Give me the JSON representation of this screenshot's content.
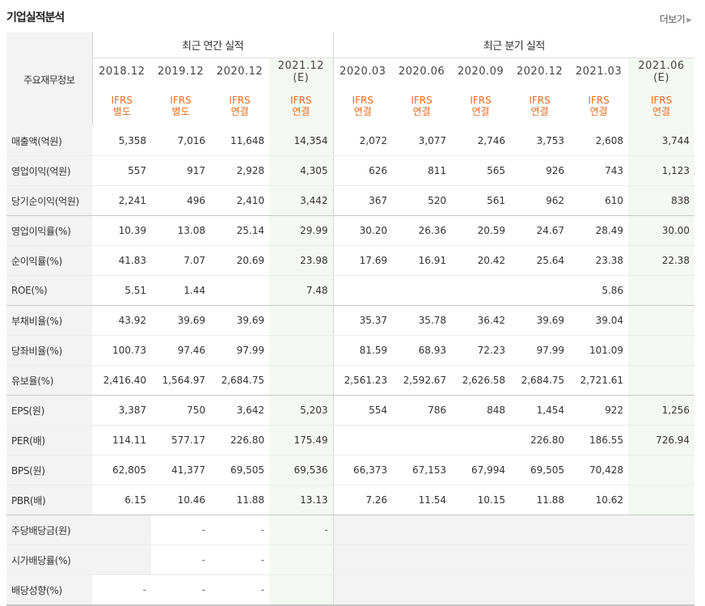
{
  "header": {
    "title": "기업실적분석",
    "more_label": "더보기"
  },
  "table": {
    "row_header": "주요재무정보",
    "annual_group": "최근 연간 실적",
    "quarter_group": "최근 분기 실적",
    "periods": [
      {
        "label": "2018.12",
        "type_top": "IFRS",
        "type_bottom": "별도"
      },
      {
        "label": "2019.12",
        "type_top": "IFRS",
        "type_bottom": "별도"
      },
      {
        "label": "2020.12",
        "type_top": "IFRS",
        "type_bottom": "연결"
      },
      {
        "label": "2021.12",
        "sub": "(E)",
        "type_top": "IFRS",
        "type_bottom": "연결"
      },
      {
        "label": "2020.03",
        "type_top": "IFRS",
        "type_bottom": "연결"
      },
      {
        "label": "2020.06",
        "type_top": "IFRS",
        "type_bottom": "연결"
      },
      {
        "label": "2020.09",
        "type_top": "IFRS",
        "type_bottom": "연결"
      },
      {
        "label": "2020.12",
        "type_top": "IFRS",
        "type_bottom": "연결"
      },
      {
        "label": "2021.03",
        "type_top": "IFRS",
        "type_bottom": "연결"
      },
      {
        "label": "2021.06",
        "sub": "(E)",
        "type_top": "IFRS",
        "type_bottom": "연결"
      }
    ],
    "rows": [
      {
        "label": "매출액(억원)",
        "values": [
          "5,358",
          "7,016",
          "11,648",
          "14,354",
          "2,072",
          "3,077",
          "2,746",
          "3,753",
          "2,608",
          "3,744"
        ]
      },
      {
        "label": "영업이익(억원)",
        "values": [
          "557",
          "917",
          "2,928",
          "4,305",
          "626",
          "811",
          "565",
          "926",
          "743",
          "1,123"
        ]
      },
      {
        "label": "당기순이익(억원)",
        "values": [
          "2,241",
          "496",
          "2,410",
          "3,442",
          "367",
          "520",
          "561",
          "962",
          "610",
          "838"
        ]
      },
      {
        "label": "영업이익률(%)",
        "values": [
          "10.39",
          "13.08",
          "25.14",
          "29.99",
          "30.20",
          "26.36",
          "20.59",
          "24.67",
          "28.49",
          "30.00"
        ]
      },
      {
        "label": "순이익률(%)",
        "values": [
          "41.83",
          "7.07",
          "20.69",
          "23.98",
          "17.69",
          "16.91",
          "20.42",
          "25.64",
          "23.38",
          "22.38"
        ]
      },
      {
        "label": "ROE(%)",
        "values": [
          "5.51",
          "1.44",
          "",
          "7.48",
          "",
          "",
          "",
          "",
          "5.86",
          ""
        ]
      },
      {
        "label": "부채비율(%)",
        "values": [
          "43.92",
          "39.69",
          "39.69",
          "",
          "35.37",
          "35.78",
          "36.42",
          "39.69",
          "39.04",
          ""
        ]
      },
      {
        "label": "당좌비율(%)",
        "values": [
          "100.73",
          "97.46",
          "97.99",
          "",
          "81.59",
          "68.93",
          "72.23",
          "97.99",
          "101.09",
          ""
        ]
      },
      {
        "label": "유보율(%)",
        "values": [
          "2,416.40",
          "1,564.97",
          "2,684.75",
          "",
          "2,561.23",
          "2,592.67",
          "2,626.58",
          "2,684.75",
          "2,721.61",
          ""
        ]
      },
      {
        "label": "EPS(원)",
        "values": [
          "3,387",
          "750",
          "3,642",
          "5,203",
          "554",
          "786",
          "848",
          "1,454",
          "922",
          "1,256"
        ]
      },
      {
        "label": "PER(배)",
        "values": [
          "114.11",
          "577.17",
          "226.80",
          "175.49",
          "",
          "",
          "",
          "226.80",
          "186.55",
          "726.94"
        ]
      },
      {
        "label": "BPS(원)",
        "values": [
          "62,805",
          "41,377",
          "69,505",
          "69,536",
          "66,373",
          "67,153",
          "67,994",
          "69,505",
          "70,428",
          ""
        ]
      },
      {
        "label": "PBR(배)",
        "values": [
          "6.15",
          "10.46",
          "11.88",
          "13.13",
          "7.26",
          "11.54",
          "10.15",
          "11.88",
          "10.62",
          ""
        ]
      },
      {
        "label": "주당배당금(원)",
        "values": [
          "",
          "-",
          "-",
          "-",
          "",
          "",
          "",
          "",
          "",
          ""
        ]
      },
      {
        "label": "시가배당률(%)",
        "values": [
          "",
          "-",
          "-",
          "",
          "",
          "",
          "",
          "",
          "",
          ""
        ]
      },
      {
        "label": "배당성향(%)",
        "values": [
          "-",
          "-",
          "-",
          "",
          "",
          "",
          "",
          "",
          "",
          ""
        ]
      }
    ]
  },
  "colors": {
    "accent_orange": "#ea6a1d",
    "estimate_bg": "#f4f8f2",
    "label_bg": "#f3f3f3"
  }
}
